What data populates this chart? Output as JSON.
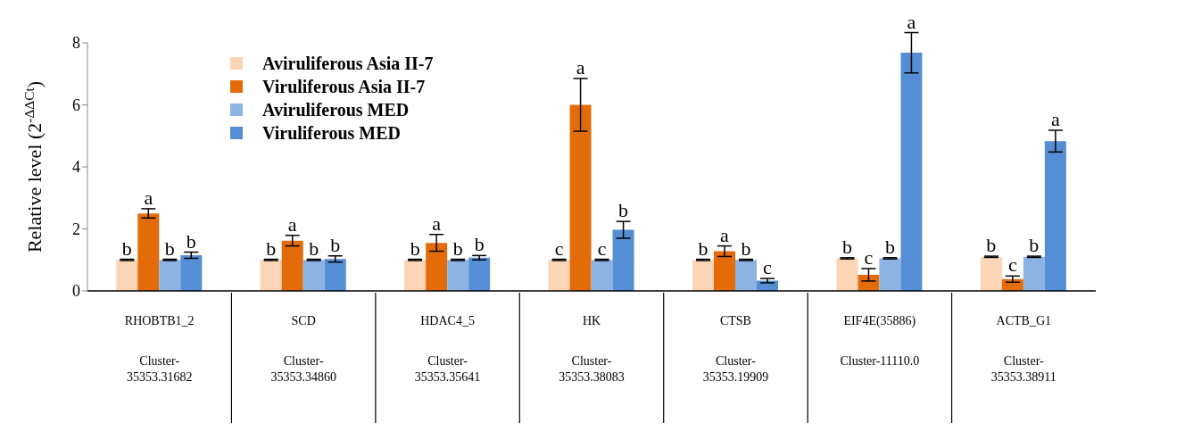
{
  "chart_data": {
    "type": "bar",
    "ylabel": "Relative level (2$^{-ΔΔCt}$)",
    "categories": [
      "RHOBTB1_2\nCluster-35353.31682",
      "SCD\nCluster-35353.34860",
      "HDAC4_5\nCluster-35353.35641",
      "HK\nCluster-35353.38083",
      "CTSB\nCluster-35353.19909",
      "EIF4E(35886)\nCluster-11110.0",
      "ACTB_G1\nCluster-35353.38911"
    ],
    "series": [
      {
        "name": "Aviruliferous Asia II-7",
        "color": "#fbd5b5",
        "values": [
          1,
          1,
          1,
          1,
          1,
          1.05,
          1.1
        ],
        "errors": [
          0.02,
          0.02,
          0.02,
          0.02,
          0.02,
          0.02,
          0.02
        ],
        "value_labels": [
          "b",
          "b",
          "b",
          "c",
          "b",
          "b",
          "b"
        ]
      },
      {
        "name": "Viruliferous Asia II-7",
        "color": "#e36c09",
        "values": [
          2.5,
          1.62,
          1.55,
          6.0,
          1.28,
          0.52,
          0.38
        ],
        "errors": [
          0.15,
          0.17,
          0.27,
          0.85,
          0.17,
          0.2,
          0.1
        ],
        "value_labels": [
          "a",
          "a",
          "a",
          "a",
          "a",
          "c",
          "c"
        ]
      },
      {
        "name": "Aviruliferous MED",
        "color": "#8db3e2",
        "values": [
          1,
          1,
          1,
          1,
          1,
          1.05,
          1.1
        ],
        "errors": [
          0.02,
          0.02,
          0.02,
          0.02,
          0.02,
          0.02,
          0.02
        ],
        "value_labels": [
          "b",
          "b",
          "b",
          "c",
          "b",
          "b",
          "b"
        ]
      },
      {
        "name": "Viruliferous MED",
        "color": "#558ed5",
        "values": [
          1.15,
          1.03,
          1.07,
          1.97,
          0.33,
          7.68,
          4.83
        ],
        "errors": [
          0.1,
          0.1,
          0.07,
          0.27,
          0.07,
          0.65,
          0.35
        ],
        "value_labels": [
          "b",
          "b",
          "b",
          "b",
          "c",
          "a",
          "a"
        ]
      }
    ],
    "ylim": [
      0,
      8
    ],
    "yticks": [
      0,
      2,
      4,
      6,
      8
    ],
    "legend": "top left"
  }
}
